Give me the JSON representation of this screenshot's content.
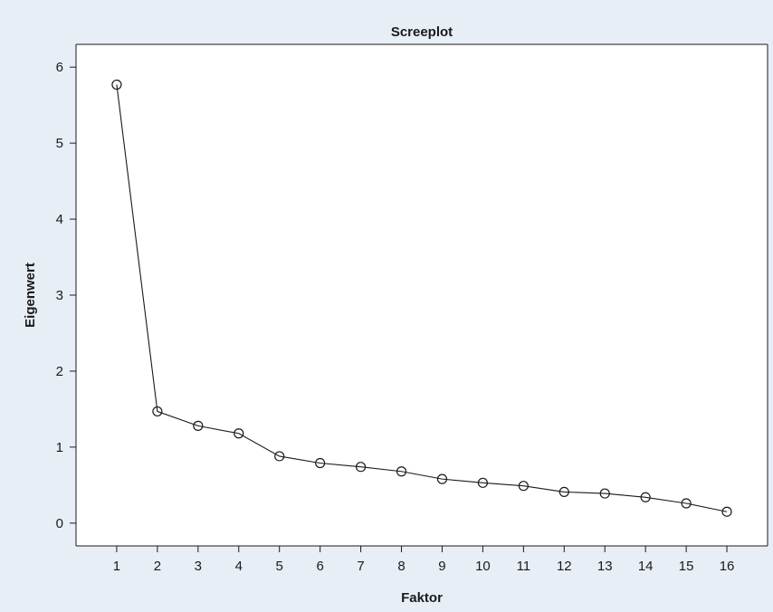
{
  "chart_data": {
    "type": "line",
    "title": "Screeplot",
    "xlabel": "Faktor",
    "ylabel": "Eigenwert",
    "x": [
      1,
      2,
      3,
      4,
      5,
      6,
      7,
      8,
      9,
      10,
      11,
      12,
      13,
      14,
      15,
      16
    ],
    "y": [
      5.77,
      1.47,
      1.28,
      1.18,
      0.88,
      0.79,
      0.74,
      0.68,
      0.58,
      0.53,
      0.49,
      0.41,
      0.39,
      0.34,
      0.26,
      0.15
    ],
    "xlim": [
      0,
      17
    ],
    "ylim": [
      -0.3,
      6.3
    ],
    "xticks": [
      "1",
      "2",
      "3",
      "4",
      "5",
      "6",
      "7",
      "8",
      "9",
      "10",
      "11",
      "12",
      "13",
      "14",
      "15",
      "16"
    ],
    "yticks": [
      "0",
      "1",
      "2",
      "3",
      "4",
      "5",
      "6"
    ],
    "marker": "open-circle",
    "grid": false,
    "colors": {
      "background": "#e8eef6",
      "plot_background": "#ffffff",
      "line": "#1a1a1a"
    }
  }
}
